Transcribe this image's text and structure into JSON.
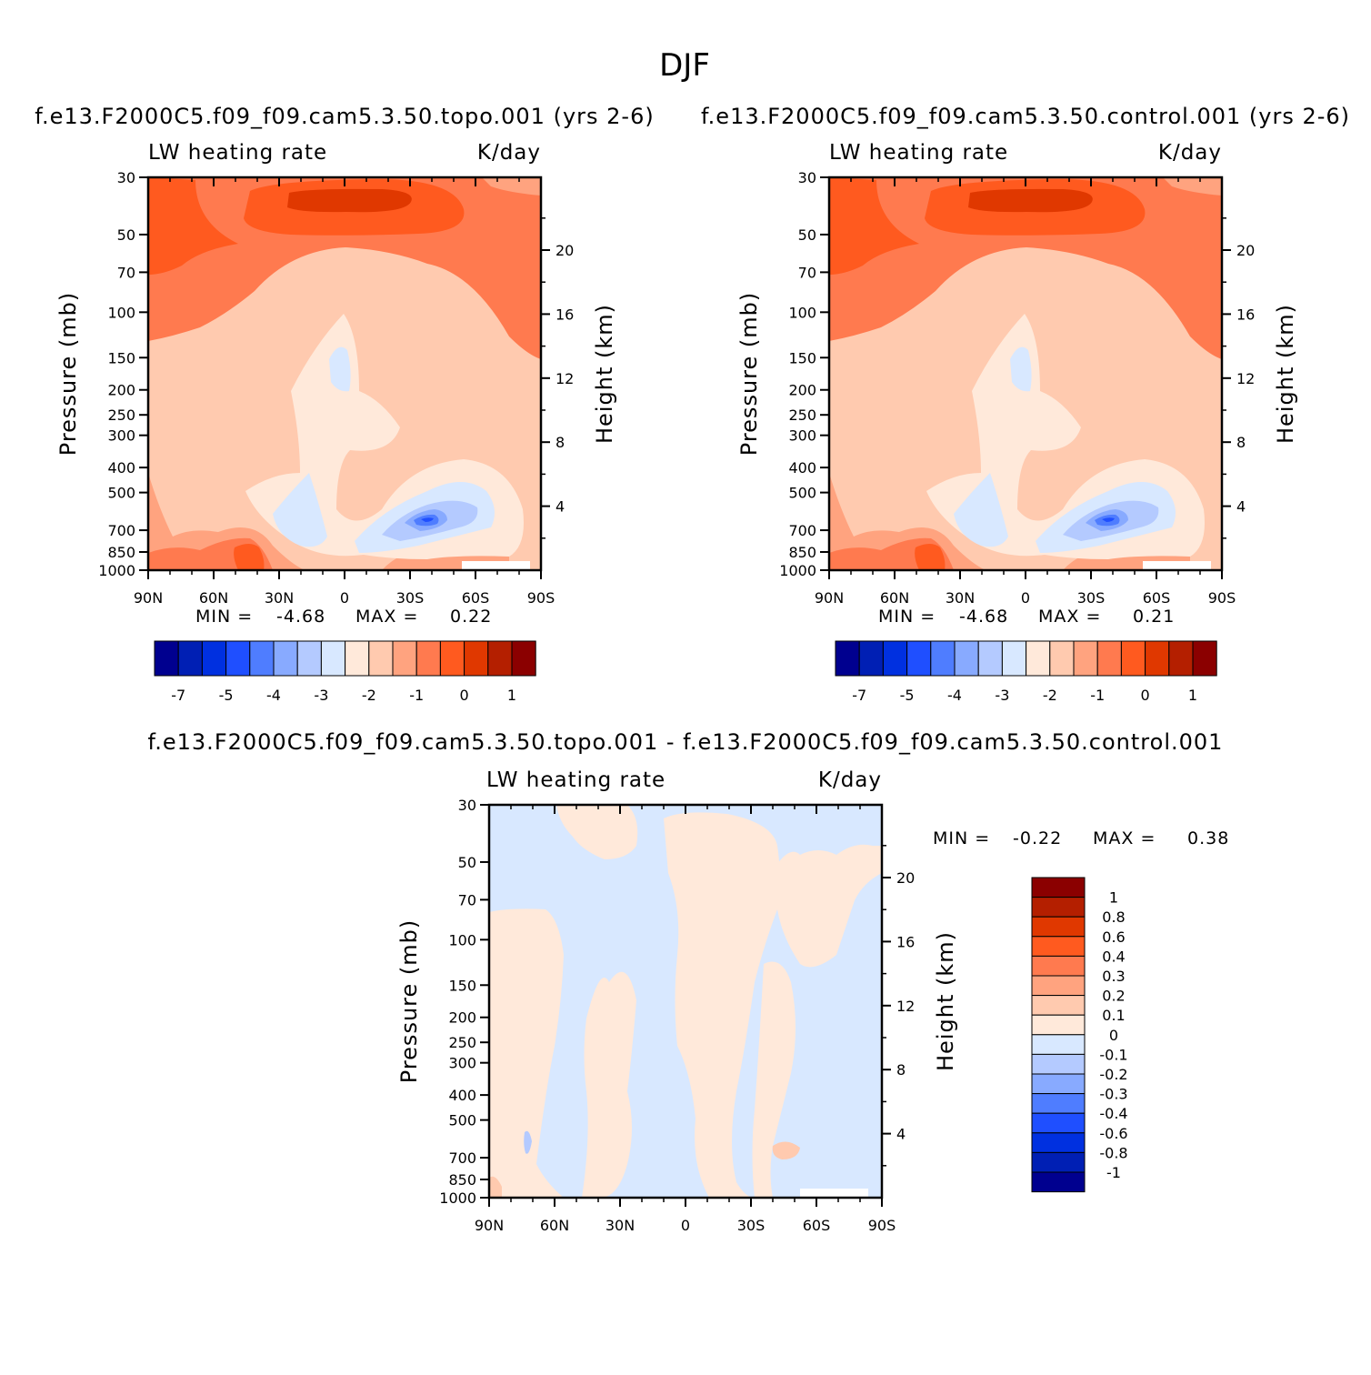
{
  "page": {
    "title": "DJF"
  },
  "colors": {
    "blue_to_red": [
      "#00008f",
      "#001fb4",
      "#0030e0",
      "#1f4fff",
      "#4f7dff",
      "#88aaff",
      "#b4caff",
      "#d8e8ff",
      "#ffe9da",
      "#ffcaaf",
      "#ffa37f",
      "#ff7a4f",
      "#ff5a1f",
      "#e03800",
      "#b41f00",
      "#8b0000"
    ],
    "frame": "#000000"
  },
  "chart_data": [
    {
      "type": "heatmap",
      "subtype": "filled-contour latitude-pressure cross section",
      "title": "f.e13.F2000C5.f09_f09.cam5.3.50.topo.001  (yrs 2-6)",
      "left_string": "LW heating rate",
      "right_string": "K/day",
      "xlabel": "",
      "ylabel": "Pressure (mb)",
      "y2label": "Height (km)",
      "x_ticks": [
        "90N",
        "60N",
        "30N",
        "0",
        "30S",
        "60S",
        "90S"
      ],
      "y_ticks": [
        30,
        50,
        70,
        100,
        150,
        200,
        250,
        300,
        400,
        500,
        700,
        850,
        1000
      ],
      "y_tick_labels": [
        "30",
        "50",
        "70",
        "100",
        "150",
        "200",
        "250",
        "300",
        "400",
        "500",
        "700",
        "850",
        "1000"
      ],
      "y2_ticks": [
        20,
        16,
        12,
        8,
        4
      ],
      "y2_tick_labels": [
        "20",
        "16",
        "12",
        "8",
        "4"
      ],
      "ylim": [
        1000,
        30
      ],
      "yscale": "log",
      "stats": {
        "min_label": "MIN  =",
        "min": "-4.68",
        "max_label": "MAX  =",
        "max": "0.22"
      },
      "colorbar": {
        "orientation": "horizontal",
        "labels": [
          "-7",
          "-5",
          "-4",
          "-3",
          "-2",
          "-1",
          "0",
          "1"
        ]
      }
    },
    {
      "type": "heatmap",
      "subtype": "filled-contour latitude-pressure cross section",
      "title": "f.e13.F2000C5.f09_f09.cam5.3.50.control.001  (yrs 2-6)",
      "left_string": "LW heating rate",
      "right_string": "K/day",
      "xlabel": "",
      "ylabel": "Pressure (mb)",
      "y2label": "Height (km)",
      "x_ticks": [
        "90N",
        "60N",
        "30N",
        "0",
        "30S",
        "60S",
        "90S"
      ],
      "y_ticks": [
        30,
        50,
        70,
        100,
        150,
        200,
        250,
        300,
        400,
        500,
        700,
        850,
        1000
      ],
      "y_tick_labels": [
        "30",
        "50",
        "70",
        "100",
        "150",
        "200",
        "250",
        "300",
        "400",
        "500",
        "700",
        "850",
        "1000"
      ],
      "y2_ticks": [
        20,
        16,
        12,
        8,
        4
      ],
      "y2_tick_labels": [
        "20",
        "16",
        "12",
        "8",
        "4"
      ],
      "ylim": [
        1000,
        30
      ],
      "yscale": "log",
      "stats": {
        "min_label": "MIN  =",
        "min": "-4.68",
        "max_label": "MAX  =",
        "max": "0.21"
      },
      "colorbar": {
        "orientation": "horizontal",
        "labels": [
          "-7",
          "-5",
          "-4",
          "-3",
          "-2",
          "-1",
          "0",
          "1"
        ]
      }
    },
    {
      "type": "heatmap",
      "subtype": "filled-contour latitude-pressure cross section (difference)",
      "title": "f.e13.F2000C5.f09_f09.cam5.3.50.topo.001  -  f.e13.F2000C5.f09_f09.cam5.3.50.control.001",
      "left_string": "LW heating rate",
      "right_string": "K/day",
      "xlabel": "",
      "ylabel": "Pressure (mb)",
      "y2label": "Height (km)",
      "x_ticks": [
        "90N",
        "60N",
        "30N",
        "0",
        "30S",
        "60S",
        "90S"
      ],
      "y_ticks": [
        30,
        50,
        70,
        100,
        150,
        200,
        250,
        300,
        400,
        500,
        700,
        850,
        1000
      ],
      "y_tick_labels": [
        "30",
        "50",
        "70",
        "100",
        "150",
        "200",
        "250",
        "300",
        "400",
        "500",
        "700",
        "850",
        "1000"
      ],
      "y2_ticks": [
        20,
        16,
        12,
        8,
        4
      ],
      "y2_tick_labels": [
        "20",
        "16",
        "12",
        "8",
        "4"
      ],
      "ylim": [
        1000,
        30
      ],
      "yscale": "log",
      "stats": {
        "min_label": "MIN  =",
        "min": "-0.22",
        "max_label": "MAX  =",
        "max": "0.38"
      },
      "colorbar": {
        "orientation": "vertical",
        "labels_top_to_bottom": [
          "1",
          "0.8",
          "0.6",
          "0.4",
          "0.3",
          "0.2",
          "0.1",
          "0",
          "-0.1",
          "-0.2",
          "-0.3",
          "-0.4",
          "-0.6",
          "-0.8",
          "-1"
        ]
      }
    }
  ]
}
